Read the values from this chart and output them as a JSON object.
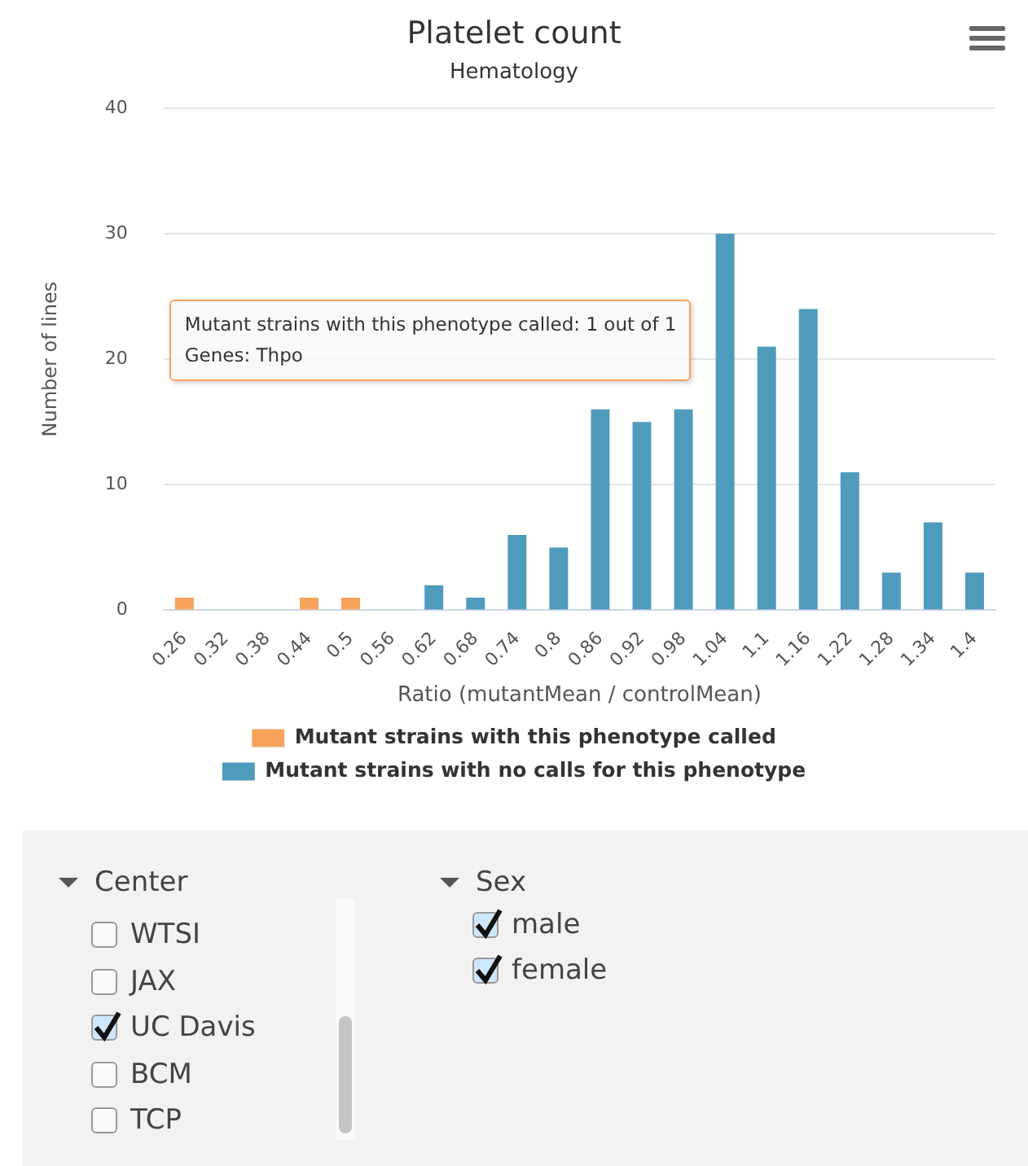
{
  "chart_data": {
    "type": "bar",
    "title": "Platelet count",
    "subtitle": "Hematology",
    "xlabel": "Ratio (mutantMean / controlMean)",
    "ylabel": "Number of lines",
    "categories": [
      "0.26",
      "0.32",
      "0.38",
      "0.44",
      "0.5",
      "0.56",
      "0.62",
      "0.68",
      "0.74",
      "0.8",
      "0.86",
      "0.92",
      "0.98",
      "1.04",
      "1.1",
      "1.16",
      "1.22",
      "1.28",
      "1.34",
      "1.4"
    ],
    "series": [
      {
        "name": "Mutant strains with this phenotype called",
        "color": "#f7a35c",
        "values": [
          1,
          null,
          null,
          1,
          1,
          null,
          null,
          null,
          null,
          null,
          null,
          null,
          null,
          null,
          null,
          null,
          null,
          null,
          null,
          null
        ]
      },
      {
        "name": "Mutant strains with no calls for this phenotype",
        "color": "#4f9bbb",
        "values": [
          null,
          null,
          null,
          null,
          null,
          null,
          2,
          1,
          6,
          5,
          16,
          15,
          16,
          30,
          21,
          24,
          11,
          3,
          7,
          3
        ]
      }
    ],
    "ylim": [
      0,
      40
    ],
    "yticks": [
      0,
      10,
      20,
      30,
      40
    ],
    "grid": "y",
    "legend": "bottom",
    "annotations": [
      "Mutant strains with this phenotype called: 1 out of 1\nGenes: Thpo",
      "Center",
      "WTSI",
      "JAX",
      "UC Davis",
      "BCM",
      "TCP",
      "Sex",
      "male",
      "female"
    ]
  }
}
